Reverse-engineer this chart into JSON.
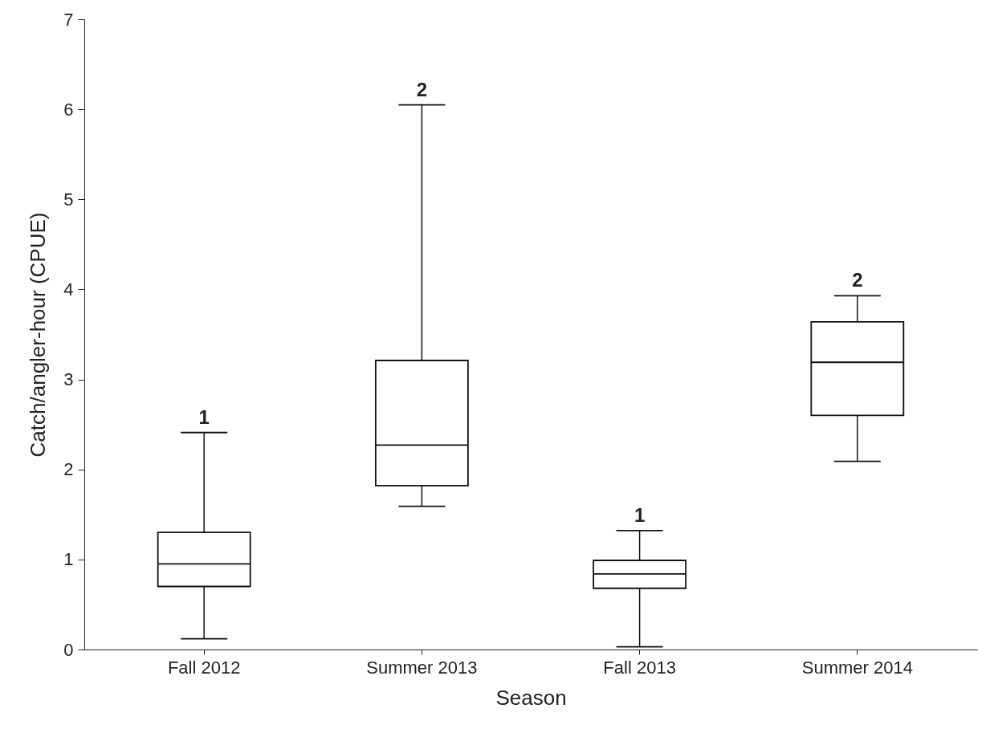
{
  "chart_data": {
    "type": "box",
    "xlabel": "Season",
    "ylabel": "Catch/angler-hour (CPUE)",
    "categories": [
      "Fall 2012",
      "Summer 2013",
      "Fall 2013",
      "Summer 2014"
    ],
    "boxes": [
      {
        "low": 0.12,
        "q1": 0.7,
        "median": 0.95,
        "q3": 1.3,
        "high": 2.41
      },
      {
        "low": 1.59,
        "q1": 1.82,
        "median": 2.27,
        "q3": 3.21,
        "high": 6.05
      },
      {
        "low": 0.03,
        "q1": 0.68,
        "median": 0.84,
        "q3": 0.99,
        "high": 1.32
      },
      {
        "low": 2.09,
        "q1": 2.6,
        "median": 3.19,
        "q3": 3.64,
        "high": 3.93
      }
    ],
    "ylim": [
      0,
      7
    ],
    "yticks": [
      0,
      1,
      2,
      3,
      4,
      5,
      6,
      7
    ],
    "grid": false,
    "annotations": [
      {
        "text": "1",
        "x": "Fall 2012",
        "y": 2.41
      },
      {
        "text": "2",
        "x": "Summer 2013",
        "y": 6.05
      },
      {
        "text": "1",
        "x": "Fall 2013",
        "y": 1.32
      },
      {
        "text": "2",
        "x": "Summer 2014",
        "y": 3.93
      }
    ]
  }
}
